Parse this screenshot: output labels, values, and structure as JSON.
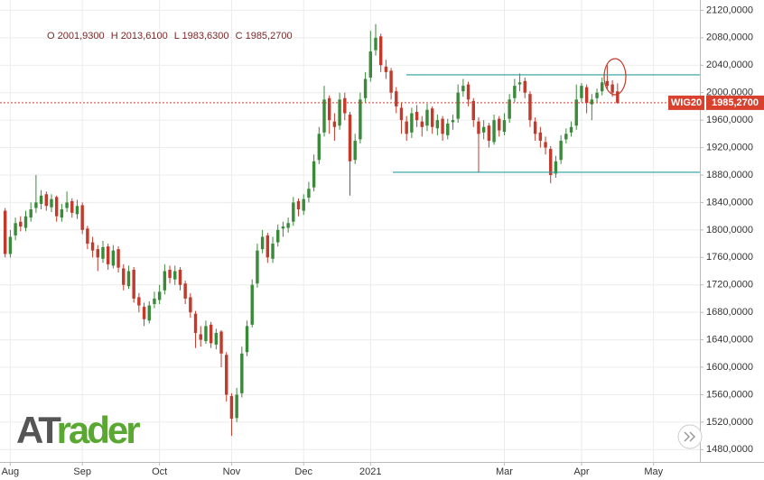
{
  "chart_data": {
    "type": "candlestick",
    "ohlc_header": [
      "O 2001,9300",
      "H 2013,6100",
      "L 1983,6300",
      "C 1985,2700"
    ],
    "logo": [
      "AT",
      "rader"
    ],
    "up_color": "#3a8a3a",
    "down_color": "#c23a2b",
    "grid": true,
    "x": [
      0,
      1,
      2,
      3,
      4,
      5,
      6,
      7,
      8,
      9,
      10,
      11,
      12,
      13,
      14,
      15,
      16,
      17,
      18,
      19,
      20,
      21,
      22,
      23,
      24,
      25,
      26,
      27,
      28,
      29,
      30,
      31,
      32,
      33,
      34,
      35,
      36,
      37,
      38,
      39,
      40,
      41,
      42,
      43,
      44,
      45,
      46,
      47,
      48,
      49,
      50,
      51,
      52,
      53,
      54,
      55,
      56,
      57,
      58,
      59,
      60,
      61,
      62,
      63,
      64,
      65,
      66,
      67,
      68,
      69,
      70,
      71,
      72,
      73,
      74,
      75,
      76,
      77,
      78,
      79,
      80,
      81,
      82,
      83,
      84,
      85,
      86,
      87,
      88,
      89,
      90,
      91,
      92,
      93,
      94,
      95,
      96,
      97,
      98,
      99,
      100,
      101,
      102,
      103,
      104,
      105,
      106,
      107,
      108,
      109,
      110,
      111,
      112,
      113,
      114,
      115,
      116,
      117,
      118,
      119
    ],
    "open": [
      1828,
      1765,
      1792,
      1812,
      1803,
      1818,
      1832,
      1838,
      1852,
      1833,
      1848,
      1818,
      1832,
      1842,
      1823,
      1836,
      1802,
      1782,
      1772,
      1758,
      1776,
      1748,
      1772,
      1744,
      1718,
      1742,
      1702,
      1688,
      1668,
      1692,
      1698,
      1712,
      1742,
      1728,
      1742,
      1722,
      1702,
      1678,
      1648,
      1638,
      1662,
      1633,
      1652,
      1618,
      1558,
      1526,
      1562,
      1622,
      1662,
      1722,
      1772,
      1792,
      1758,
      1782,
      1802,
      1803,
      1812,
      1842,
      1828,
      1847,
      1862,
      1902,
      1942,
      1992,
      1958,
      1952,
      1992,
      1968,
      1902,
      1932,
      1992,
      2022,
      2062,
      2082,
      2038,
      2032,
      2002,
      1978,
      1958,
      1942,
      1972,
      1958,
      1952,
      1977,
      1948,
      1962,
      1938,
      1957,
      1962,
      2002,
      2012,
      1988,
      1958,
      1942,
      1952,
      1928,
      1962,
      1943,
      1962,
      1992,
      2012,
      2017,
      1998,
      1958,
      1942,
      1928,
      1918,
      1882,
      1902,
      1932,
      1942,
      1952,
      1992,
      2008,
      1983,
      1992,
      2002,
      2017,
      2012,
      2001.93
    ],
    "high": [
      1832,
      1800,
      1818,
      1820,
      1828,
      1840,
      1880,
      1858,
      1856,
      1852,
      1850,
      1838,
      1856,
      1846,
      1844,
      1840,
      1806,
      1790,
      1778,
      1784,
      1780,
      1778,
      1776,
      1750,
      1748,
      1746,
      1708,
      1694,
      1696,
      1710,
      1720,
      1750,
      1748,
      1748,
      1746,
      1726,
      1708,
      1682,
      1660,
      1668,
      1666,
      1656,
      1654,
      1622,
      1562,
      1570,
      1630,
      1668,
      1728,
      1780,
      1800,
      1796,
      1790,
      1808,
      1812,
      1818,
      1848,
      1846,
      1852,
      1870,
      1910,
      1950,
      2010,
      1996,
      1970,
      2000,
      2000,
      1972,
      1940,
      2000,
      2030,
      2090,
      2100,
      2086,
      2048,
      2036,
      2008,
      1986,
      1966,
      1978,
      1982,
      1966,
      1984,
      1980,
      1968,
      1966,
      1962,
      1968,
      2012,
      2020,
      2016,
      1992,
      1964,
      1960,
      1956,
      1968,
      1966,
      1970,
      1998,
      2020,
      2028,
      2022,
      2002,
      1964,
      1950,
      1936,
      1922,
      1908,
      1938,
      1948,
      1958,
      2012,
      2014,
      2012,
      1998,
      2006,
      2022,
      2040,
      2018,
      2013.61
    ],
    "low": [
      1760,
      1760,
      1785,
      1798,
      1798,
      1812,
      1825,
      1830,
      1828,
      1826,
      1812,
      1812,
      1826,
      1818,
      1816,
      1794,
      1772,
      1760,
      1740,
      1752,
      1742,
      1744,
      1738,
      1712,
      1714,
      1694,
      1680,
      1660,
      1664,
      1686,
      1692,
      1706,
      1722,
      1720,
      1712,
      1692,
      1672,
      1628,
      1630,
      1634,
      1628,
      1626,
      1600,
      1550,
      1500,
      1520,
      1556,
      1616,
      1658,
      1716,
      1766,
      1752,
      1752,
      1776,
      1790,
      1796,
      1806,
      1820,
      1822,
      1840,
      1856,
      1896,
      1936,
      1940,
      1930,
      1946,
      1960,
      1850,
      1896,
      1926,
      1986,
      2016,
      2054,
      2030,
      2020,
      1990,
      1970,
      1940,
      1930,
      1934,
      1950,
      1936,
      1944,
      1940,
      1938,
      1930,
      1932,
      1946,
      1956,
      1994,
      1980,
      1950,
      1884,
      1932,
      1920,
      1924,
      1936,
      1938,
      1956,
      1986,
      2002,
      1992,
      1950,
      1930,
      1920,
      1910,
      1868,
      1876,
      1896,
      1926,
      1936,
      1946,
      1986,
      1970,
      1960,
      1986,
      1996,
      2004,
      1994,
      1983.63
    ],
    "close": [
      1765,
      1790,
      1810,
      1805,
      1820,
      1830,
      1840,
      1850,
      1835,
      1845,
      1820,
      1830,
      1840,
      1825,
      1835,
      1800,
      1780,
      1770,
      1760,
      1775,
      1750,
      1770,
      1745,
      1720,
      1740,
      1700,
      1690,
      1670,
      1690,
      1700,
      1710,
      1740,
      1730,
      1740,
      1720,
      1700,
      1680,
      1650,
      1640,
      1660,
      1635,
      1650,
      1620,
      1560,
      1525,
      1560,
      1620,
      1660,
      1720,
      1770,
      1790,
      1760,
      1780,
      1800,
      1805,
      1810,
      1840,
      1830,
      1845,
      1860,
      1900,
      1940,
      1990,
      1960,
      1950,
      1990,
      1970,
      1900,
      1930,
      1990,
      2020,
      2060,
      2080,
      2040,
      2030,
      2000,
      1980,
      1960,
      1940,
      1970,
      1960,
      1950,
      1975,
      1950,
      1960,
      1940,
      1955,
      1960,
      2000,
      2010,
      1990,
      1960,
      1940,
      1950,
      1930,
      1960,
      1945,
      1960,
      1990,
      2010,
      2015,
      2000,
      1960,
      1940,
      1930,
      1920,
      1880,
      1900,
      1930,
      1940,
      1950,
      1990,
      2010,
      1985,
      1990,
      2000,
      2015,
      2010,
      2000,
      1985.27
    ],
    "xlim": [
      -1,
      135
    ],
    "xticks": [
      {
        "value": 1,
        "label": "Aug"
      },
      {
        "value": 15,
        "label": "Sep"
      },
      {
        "value": 30,
        "label": "Oct"
      },
      {
        "value": 44,
        "label": "Nov"
      },
      {
        "value": 58,
        "label": "Dec"
      },
      {
        "value": 71,
        "label": "2021"
      },
      {
        "value": 97,
        "label": "Mar"
      },
      {
        "value": 112,
        "label": "Apr"
      },
      {
        "value": 126,
        "label": "May"
      }
    ],
    "ylim": [
      1462,
      2135
    ],
    "yticks": [
      {
        "value": 1480,
        "label": "1480,0000"
      },
      {
        "value": 1520,
        "label": "1520,0000"
      },
      {
        "value": 1560,
        "label": "1560,0000"
      },
      {
        "value": 1600,
        "label": "1600,0000"
      },
      {
        "value": 1640,
        "label": "1640,0000"
      },
      {
        "value": 1680,
        "label": "1680,0000"
      },
      {
        "value": 1720,
        "label": "1720,0000"
      },
      {
        "value": 1760,
        "label": "1760,0000"
      },
      {
        "value": 1800,
        "label": "1800,0000"
      },
      {
        "value": 1840,
        "label": "1840,0000"
      },
      {
        "value": 1880,
        "label": "1880,0000"
      },
      {
        "value": 1920,
        "label": "1920,0000"
      },
      {
        "value": 1960,
        "label": "1960,0000"
      },
      {
        "value": 2000,
        "label": "2000,0000"
      },
      {
        "value": 2040,
        "label": "2040,0000"
      },
      {
        "value": 2080,
        "label": "2080,0000"
      },
      {
        "value": 2120,
        "label": "2120,0000"
      }
    ],
    "hlines": [
      {
        "value": 2026,
        "color": "#2a9d9d"
      },
      {
        "value": 1884,
        "color": "#2a9d9d"
      }
    ],
    "last_price": {
      "name": "WIG20",
      "value": 1985.27,
      "label": "1985,2700",
      "color": "#d9412f"
    }
  }
}
